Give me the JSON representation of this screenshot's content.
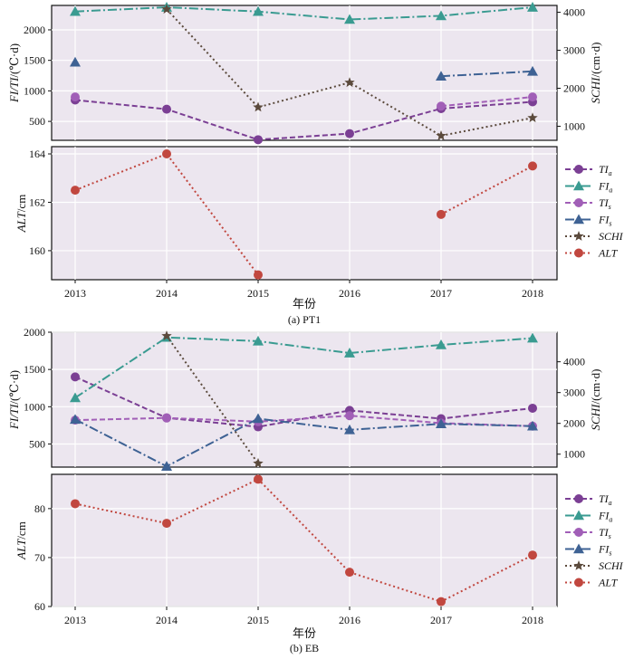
{
  "figure": {
    "x_label": "年份",
    "captions": [
      "(a) PT1",
      "(b) EB"
    ]
  },
  "legend": [
    {
      "label": "TI",
      "sub": "a",
      "color": "#7b3f94",
      "dash": "6,3",
      "marker": "circle"
    },
    {
      "label": "FI",
      "sub": "a",
      "color": "#3a9b91",
      "dash": "10,3,2,3",
      "marker": "triangle"
    },
    {
      "label": "TI",
      "sub": "s",
      "color": "#a15fb7",
      "dash": "6,3",
      "marker": "circle"
    },
    {
      "label": "FI",
      "sub": "s",
      "color": "#3e6294",
      "dash": "10,3,2,3",
      "marker": "triangle"
    },
    {
      "label": "SCHI",
      "sub": "",
      "color": "#5b4a3c",
      "dash": "2,3",
      "marker": "star"
    },
    {
      "label": "ALT",
      "sub": "",
      "color": "#c1473f",
      "dash": "2,3",
      "marker": "circle"
    }
  ],
  "chart_data": [
    {
      "type": "line",
      "caption": "(a) PT1",
      "x": [
        2013,
        2014,
        2015,
        2016,
        2017,
        2018
      ],
      "xlabel": "年份",
      "top_panel": {
        "ylabel_left": "FI/TI/(℃·d)",
        "ylabel_right": "SCHI/(cm·d)",
        "ylim_left": [
          190,
          2400
        ],
        "yticks_left": [
          500,
          1000,
          1500,
          2000
        ],
        "ylim_right": [
          630,
          4180
        ],
        "yticks_right": [
          1000,
          2000,
          3000,
          4000
        ],
        "series": [
          {
            "name": "TIa",
            "axis": "left",
            "values": [
              850,
              700,
              200,
              300,
              710,
              820
            ]
          },
          {
            "name": "FIa",
            "axis": "left",
            "values": [
              2300,
              2370,
              2300,
              2170,
              2230,
              2370
            ]
          },
          {
            "name": "TIs",
            "axis": "left",
            "values": [
              900,
              null,
              null,
              null,
              750,
              900
            ]
          },
          {
            "name": "FIs",
            "axis": "left",
            "values": [
              1470,
              null,
              null,
              null,
              1240,
              1320
            ]
          },
          {
            "name": "SCHI",
            "axis": "right",
            "values": [
              null,
              4080,
              1500,
              2150,
              750,
              1220
            ]
          }
        ]
      },
      "bottom_panel": {
        "ylabel": "ALT/cm",
        "ylim": [
          158.8,
          164.3
        ],
        "yticks": [
          160,
          162,
          164
        ],
        "series": [
          {
            "name": "ALT",
            "values": [
              162.5,
              164.0,
              159.0,
              null,
              161.5,
              163.5
            ]
          }
        ]
      }
    },
    {
      "type": "line",
      "caption": "(b) EB",
      "x": [
        2013,
        2014,
        2015,
        2016,
        2017,
        2018
      ],
      "xlabel": "年份",
      "top_panel": {
        "ylabel_left": "FI/TI/(℃·d)",
        "ylabel_right": "SCHI/(cm·d)",
        "ylim_left": [
          190,
          2000
        ],
        "yticks_left": [
          500,
          1000,
          1500,
          2000
        ],
        "ylim_right": [
          580,
          4960
        ],
        "yticks_right": [
          1000,
          2000,
          3000,
          4000
        ],
        "series": [
          {
            "name": "TIa",
            "axis": "left",
            "values": [
              1400,
              850,
              730,
              950,
              840,
              980
            ]
          },
          {
            "name": "FIa",
            "axis": "left",
            "values": [
              1120,
              1930,
              1880,
              1720,
              1830,
              1920
            ]
          },
          {
            "name": "TIs",
            "axis": "left",
            "values": [
              820,
              850,
              800,
              880,
              780,
              740
            ]
          },
          {
            "name": "FIs",
            "axis": "left",
            "values": [
              830,
              200,
              840,
              690,
              770,
              740
            ]
          },
          {
            "name": "SCHI",
            "axis": "right",
            "values": [
              null,
              4840,
              700,
              null,
              null,
              null
            ]
          }
        ]
      },
      "bottom_panel": {
        "ylabel": "ALT/cm",
        "ylim": [
          60,
          87
        ],
        "yticks": [
          60,
          70,
          80
        ],
        "series": [
          {
            "name": "ALT",
            "values": [
              81,
              77,
              86,
              67,
              61,
              70.5
            ]
          }
        ]
      }
    }
  ]
}
